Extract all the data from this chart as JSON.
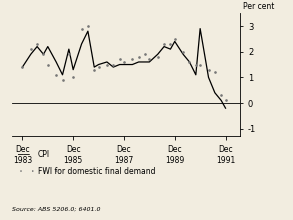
{
  "ylabel": "Per cent",
  "source": "Source: ABS 5206.0; 6401.0",
  "xlim_start": 1983.5,
  "xlim_end": 1992.5,
  "ylim": [
    -1.3,
    3.5
  ],
  "yticks": [
    -1,
    0,
    1,
    2,
    3
  ],
  "xtick_labels": [
    "Dec\n1983",
    "Dec\n1985",
    "Dec\n1987",
    "Dec\n1989",
    "Dec\n1991"
  ],
  "xtick_positions": [
    1983.92,
    1985.92,
    1987.92,
    1989.92,
    1991.92
  ],
  "legend_items": [
    "CPI",
    "FWI for domestic final demand"
  ],
  "cpi_x": [
    1983.92,
    1984.25,
    1984.5,
    1984.75,
    1984.92,
    1985.25,
    1985.5,
    1985.75,
    1985.92,
    1986.25,
    1986.5,
    1986.75,
    1986.92,
    1987.25,
    1987.5,
    1987.75,
    1987.92,
    1988.25,
    1988.5,
    1988.75,
    1988.92,
    1989.25,
    1989.5,
    1989.75,
    1989.92,
    1990.25,
    1990.5,
    1990.75,
    1990.92,
    1991.25,
    1991.5,
    1991.75,
    1991.92
  ],
  "cpi_y": [
    1.4,
    1.9,
    2.2,
    1.9,
    2.2,
    1.6,
    1.1,
    2.1,
    1.3,
    2.3,
    2.8,
    1.4,
    1.5,
    1.6,
    1.4,
    1.5,
    1.5,
    1.5,
    1.6,
    1.6,
    1.6,
    1.9,
    2.2,
    2.1,
    2.4,
    1.9,
    1.6,
    1.1,
    2.9,
    1.0,
    0.4,
    0.1,
    -0.2
  ],
  "fwi_x": [
    1983.92,
    1984.25,
    1984.5,
    1984.75,
    1984.92,
    1985.25,
    1985.5,
    1985.75,
    1985.92,
    1986.25,
    1986.5,
    1986.75,
    1986.92,
    1987.25,
    1987.5,
    1987.75,
    1987.92,
    1988.25,
    1988.5,
    1988.75,
    1988.92,
    1989.25,
    1989.5,
    1989.75,
    1989.92,
    1990.25,
    1990.5,
    1990.75,
    1990.92,
    1991.25,
    1991.5,
    1991.75,
    1991.92
  ],
  "fwi_y": [
    1.4,
    2.1,
    2.3,
    1.9,
    1.5,
    1.1,
    0.9,
    1.9,
    1.0,
    2.9,
    3.0,
    1.3,
    1.4,
    1.5,
    1.5,
    1.7,
    1.6,
    1.7,
    1.8,
    1.9,
    1.7,
    1.8,
    2.3,
    2.3,
    2.5,
    2.0,
    1.6,
    1.5,
    1.5,
    1.3,
    1.2,
    0.3,
    0.1
  ],
  "cpi_color": "#000000",
  "fwi_color": "#777777",
  "background_color": "#f2ede0"
}
